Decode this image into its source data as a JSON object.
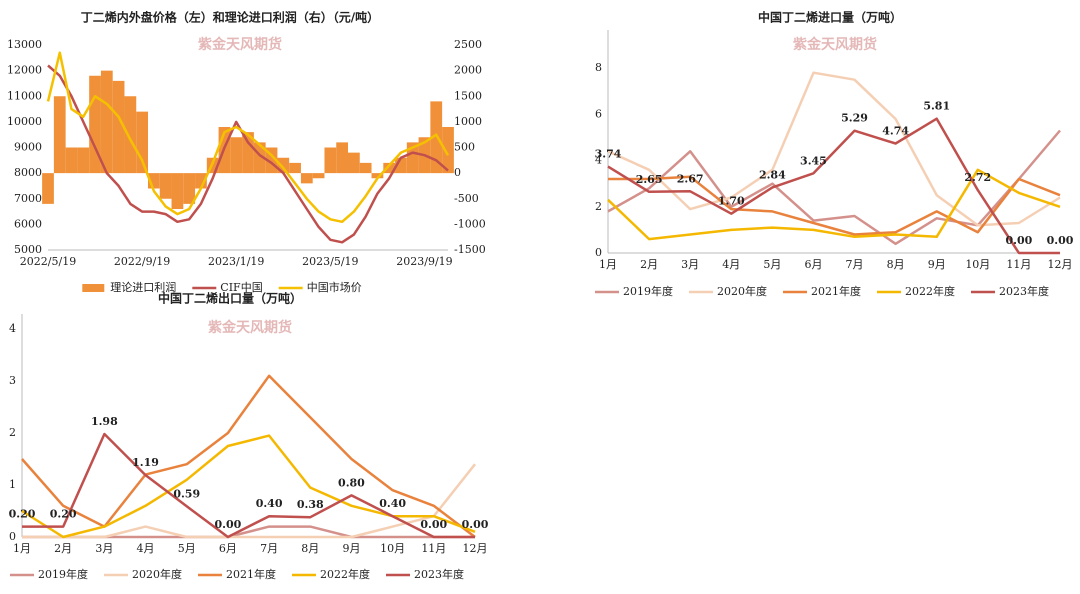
{
  "chart_data": [
    {
      "type": "combo",
      "title": "丁二烯内外盘价格（左）和理论进口利润（右）（元/吨）",
      "watermark": "紫金天风期货",
      "categories": [
        "2022/5/19",
        null,
        null,
        null,
        null,
        null,
        null,
        null,
        "2022/9/19",
        null,
        null,
        null,
        null,
        null,
        null,
        null,
        "2023/1/19",
        null,
        null,
        null,
        null,
        null,
        null,
        null,
        "2023/5/19",
        null,
        null,
        null,
        null,
        null,
        null,
        null,
        "2023/9/19",
        null,
        null
      ],
      "ylim": [
        5000,
        13000
      ],
      "yticks": [
        5000,
        6000,
        7000,
        8000,
        9000,
        10000,
        11000,
        12000,
        13000
      ],
      "y2lim": [
        -1500,
        2500
      ],
      "y2ticks": [
        -1500,
        -1000,
        -500,
        0,
        500,
        1000,
        1500,
        2000,
        2500
      ],
      "series": [
        {
          "name": "理论进口利润",
          "type": "bar",
          "axis": "y2",
          "color": "#f0913a",
          "values": [
            -600,
            1500,
            500,
            500,
            1900,
            2000,
            1800,
            1500,
            1200,
            -300,
            -500,
            -700,
            -600,
            -300,
            300,
            900,
            700,
            800,
            600,
            500,
            300,
            200,
            -200,
            -100,
            500,
            600,
            400,
            200,
            -100,
            200,
            300,
            600,
            700,
            1400,
            900
          ]
        },
        {
          "name": "CIF中国",
          "type": "line",
          "color": "#c0504d",
          "values": [
            12200,
            11800,
            11000,
            10000,
            9000,
            8000,
            7500,
            6800,
            6500,
            6500,
            6400,
            6100,
            6200,
            6800,
            7800,
            9000,
            10000,
            9200,
            8700,
            8400,
            8000,
            7300,
            6600,
            5900,
            5400,
            5300,
            5600,
            6300,
            7200,
            7800,
            8600,
            8800,
            8700,
            8500,
            8100
          ]
        },
        {
          "name": "中国市场价",
          "type": "line",
          "color": "#f5c000",
          "values": [
            10800,
            12700,
            10500,
            10200,
            11000,
            10700,
            10200,
            9300,
            8500,
            7300,
            6700,
            6400,
            6600,
            7400,
            8400,
            9600,
            9800,
            9500,
            9100,
            8700,
            8200,
            7600,
            7000,
            6500,
            6200,
            6100,
            6500,
            7100,
            7800,
            8300,
            8800,
            9000,
            9200,
            9500,
            8700
          ]
        }
      ]
    },
    {
      "type": "line",
      "title": "中国丁二烯进口量（万吨）",
      "watermark": "紫金天风期货",
      "categories": [
        "1月",
        "2月",
        "3月",
        "4月",
        "5月",
        "6月",
        "7月",
        "8月",
        "9月",
        "10月",
        "11月",
        "12月"
      ],
      "ylim": [
        0,
        9
      ],
      "yticks": [
        0,
        2,
        4,
        6,
        8
      ],
      "series": [
        {
          "name": "2019年度",
          "color": "#d4918c",
          "values": [
            1.8,
            2.8,
            4.4,
            2.0,
            3.0,
            1.4,
            1.6,
            0.4,
            1.5,
            1.2,
            3.2,
            5.3
          ]
        },
        {
          "name": "2020年度",
          "color": "#f5cfb4",
          "values": [
            4.4,
            3.6,
            1.9,
            2.4,
            3.6,
            7.8,
            7.5,
            5.8,
            2.5,
            1.2,
            1.3,
            2.4
          ]
        },
        {
          "name": "2021年度",
          "color": "#e8823c",
          "values": [
            3.2,
            3.2,
            3.3,
            1.9,
            1.8,
            1.3,
            0.8,
            0.9,
            1.8,
            0.9,
            3.2,
            2.5
          ]
        },
        {
          "name": "2022年度",
          "color": "#f5b800",
          "values": [
            2.3,
            0.6,
            0.8,
            1.0,
            1.1,
            1.0,
            0.7,
            0.8,
            0.7,
            3.6,
            2.6,
            2.0
          ]
        },
        {
          "name": "2023年度",
          "color": "#c0504d",
          "values": [
            3.74,
            2.65,
            2.67,
            1.7,
            2.84,
            3.45,
            5.29,
            4.74,
            5.81,
            2.72,
            0,
            0
          ],
          "value_labels": [
            "3.74",
            "2.65",
            "2.67",
            "1.70",
            "2.84",
            "3.45",
            "5.29",
            "4.74",
            "5.81",
            "2.72",
            "0.00",
            "0.00"
          ]
        }
      ]
    },
    {
      "type": "line",
      "title": "中国丁二烯出口量（万吨）",
      "watermark": "紫金天风期货",
      "categories": [
        "1月",
        "2月",
        "3月",
        "4月",
        "5月",
        "6月",
        "7月",
        "8月",
        "9月",
        "10月",
        "11月",
        "12月"
      ],
      "ylim": [
        0,
        4
      ],
      "yticks": [
        0,
        1,
        2,
        3,
        4
      ],
      "series": [
        {
          "name": "2019年度",
          "color": "#d4918c",
          "values": [
            0,
            0,
            0,
            0,
            0,
            0,
            0.2,
            0.2,
            0,
            0,
            0,
            0
          ]
        },
        {
          "name": "2020年度",
          "color": "#f5cfb4",
          "values": [
            0,
            0,
            0,
            0.2,
            0,
            0,
            0,
            0,
            0,
            0.2,
            0.4,
            1.4
          ]
        },
        {
          "name": "2021年度",
          "color": "#e8823c",
          "values": [
            1.5,
            0.6,
            0.2,
            1.2,
            1.4,
            2.0,
            3.1,
            2.3,
            1.5,
            0.9,
            0.6,
            0
          ]
        },
        {
          "name": "2022年度",
          "color": "#f5b800",
          "values": [
            0.5,
            0,
            0.2,
            0.6,
            1.1,
            1.75,
            1.95,
            0.95,
            0.6,
            0.4,
            0.4,
            0.1
          ]
        },
        {
          "name": "2023年度",
          "color": "#c0504d",
          "values": [
            0.2,
            0.2,
            1.98,
            1.19,
            0.59,
            0,
            0.4,
            0.38,
            0.8,
            0.4,
            0,
            0
          ],
          "value_labels": [
            "0.20",
            "0.20",
            "1.98",
            "1.19",
            "0.59",
            "0.00",
            "0.40",
            "0.38",
            "0.80",
            "0.40",
            "0.00",
            "0.00"
          ]
        }
      ]
    }
  ]
}
